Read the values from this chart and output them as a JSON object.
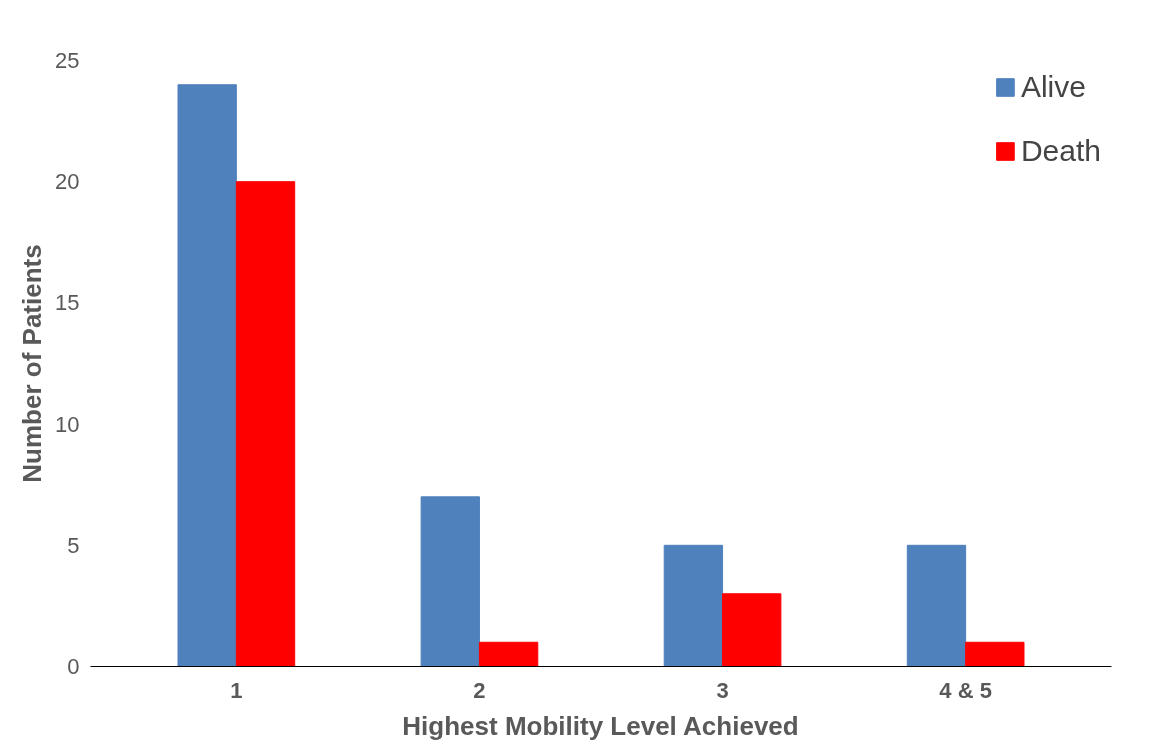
{
  "chart_data": {
    "type": "bar",
    "xlabel": "Highest Mobility Level Achieved",
    "ylabel": "Number of Patients",
    "categories": [
      "1",
      "2",
      "3",
      "4 & 5"
    ],
    "series": [
      {
        "name": "Alive",
        "color": "#4f81bd",
        "values": [
          24,
          7,
          5,
          5
        ]
      },
      {
        "name": "Death",
        "color": "#ff0000",
        "values": [
          20,
          1,
          3,
          1
        ]
      }
    ],
    "ylim": [
      0,
      25
    ],
    "yticks": [
      0,
      5,
      10,
      15,
      20,
      25
    ],
    "grid": false,
    "legend": "top right"
  }
}
